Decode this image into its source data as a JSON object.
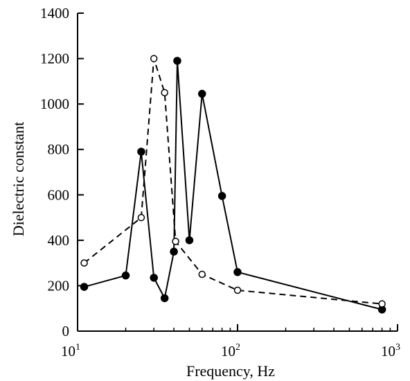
{
  "chart_data": {
    "type": "line",
    "title": "",
    "xlabel": "Frequency, Hz",
    "ylabel": "Dielectric constant",
    "xscale": "log",
    "xlim": [
      10,
      1000
    ],
    "ylim": [
      0,
      1400
    ],
    "x_ticks": [
      {
        "value": 10,
        "base": "10",
        "exp": "1"
      },
      {
        "value": 100,
        "base": "10",
        "exp": "2"
      },
      {
        "value": 1000,
        "base": "10",
        "exp": "3"
      }
    ],
    "y_ticks": [
      0,
      200,
      400,
      600,
      800,
      1000,
      1200,
      1400
    ],
    "grid": false,
    "series": [
      {
        "marker": "filled-circle",
        "line": "solid",
        "color": "#000000",
        "x": [
          11,
          20,
          25,
          30,
          35,
          40,
          42,
          50,
          60,
          80,
          100,
          800
        ],
        "y": [
          195,
          245,
          790,
          235,
          145,
          350,
          1190,
          400,
          1045,
          595,
          260,
          95
        ]
      },
      {
        "marker": "open-circle",
        "line": "dashed",
        "color": "#000000",
        "x": [
          11,
          25,
          30,
          35,
          41,
          60,
          100,
          800
        ],
        "y": [
          300,
          500,
          1200,
          1050,
          395,
          250,
          180,
          120
        ]
      }
    ]
  }
}
